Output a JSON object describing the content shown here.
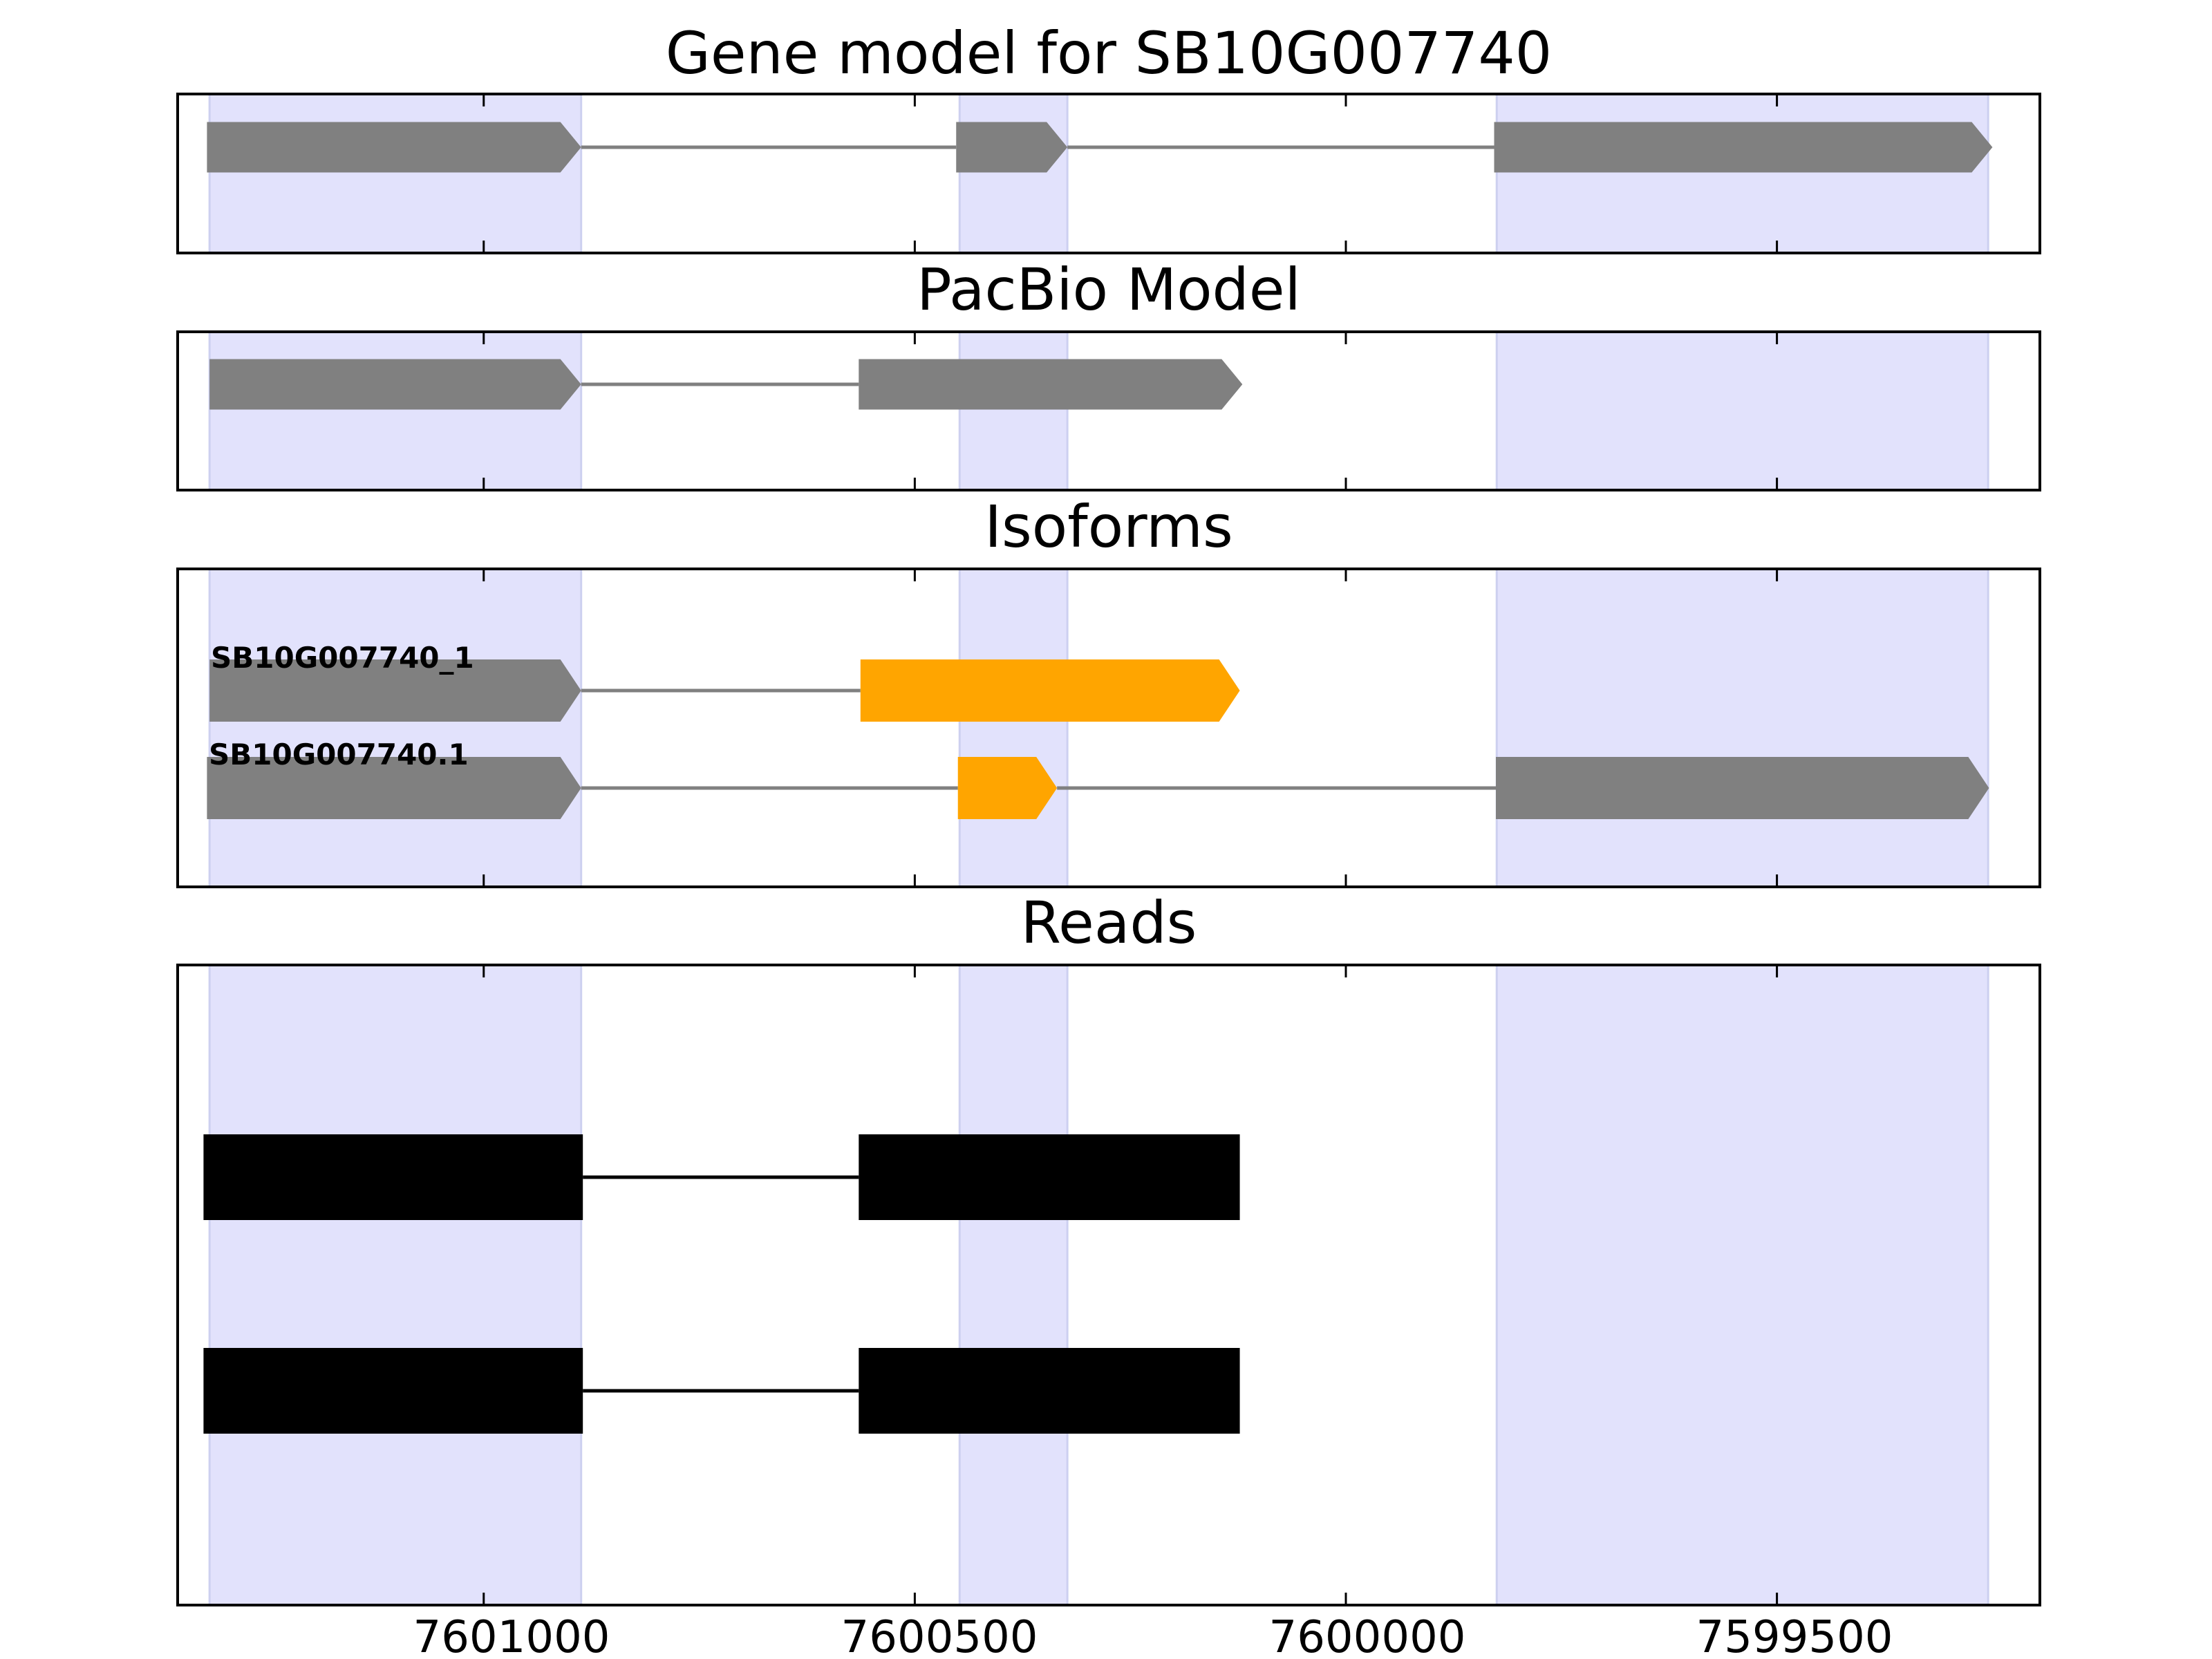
{
  "chart_data": {
    "type": "gene-track",
    "x_axis": {
      "reversed": true,
      "xlim": [
        7601355,
        7599195
      ],
      "ticks": [
        7601000,
        7600500,
        7600000,
        7599500
      ],
      "tick_labels": [
        "7601000",
        "7600500",
        "7600000",
        "7599500"
      ]
    },
    "highlight_regions": [
      [
        7601318,
        7600887
      ],
      [
        7600448,
        7600323
      ],
      [
        7599825,
        7599255
      ]
    ],
    "highlight_color": "#e2e2fc",
    "panels": [
      {
        "id": "gene-model",
        "title": "Gene model for SB10G007740",
        "tracks": [
          {
            "color": "#808080",
            "exons": [
              [
                7601321,
                7600887
              ],
              [
                7600452,
                7600323
              ],
              [
                7599828,
                7599250
              ]
            ]
          }
        ]
      },
      {
        "id": "pacbio-model",
        "title": "PacBio Model",
        "tracks": [
          {
            "color": "#808080",
            "exons": [
              [
                7601318,
                7600887
              ],
              [
                7600565,
                7600120
              ]
            ]
          }
        ]
      },
      {
        "id": "isoforms",
        "title": "Isoforms",
        "tracks": [
          {
            "label": "SB10G007740_1",
            "exons": [
              [
                7601318,
                7600887
              ],
              [
                7600563,
                7600123
              ]
            ],
            "exon_colors": [
              "#808080",
              "#ffa500"
            ]
          },
          {
            "label": "SB10G007740.1",
            "exons": [
              [
                7601321,
                7600887
              ],
              [
                7600450,
                7600335
              ],
              [
                7599826,
                7599254
              ]
            ],
            "exon_colors": [
              "#808080",
              "#ffa500",
              "#808080"
            ]
          }
        ]
      },
      {
        "id": "reads",
        "title": "Reads",
        "tracks": [
          {
            "color": "#000000",
            "exons": [
              [
                7601325,
                7600885
              ],
              [
                7600565,
                7600123
              ]
            ]
          },
          {
            "color": "#000000",
            "exons": [
              [
                7601325,
                7600885
              ],
              [
                7600565,
                7600123
              ]
            ]
          }
        ]
      }
    ]
  }
}
